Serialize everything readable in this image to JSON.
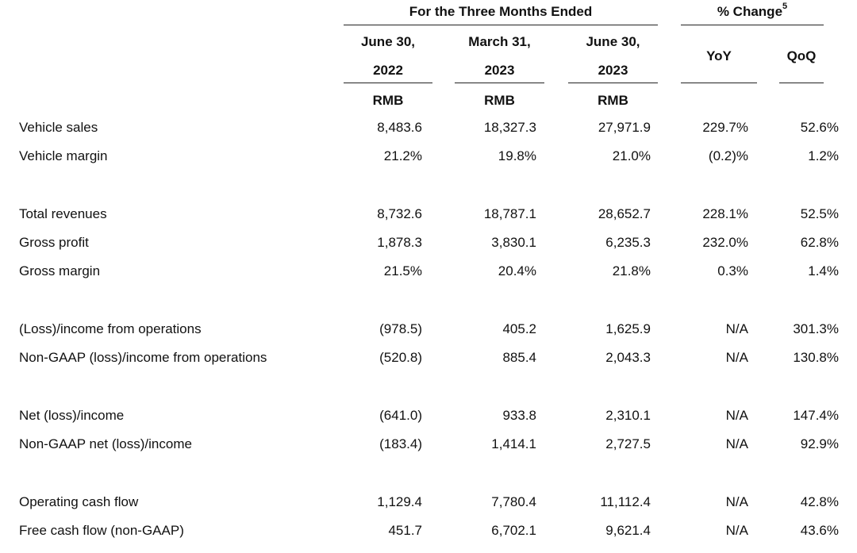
{
  "header": {
    "group_title": "For the Three Months Ended",
    "change_title": "% Change",
    "change_footnote": "5",
    "columns": [
      {
        "line1": "June 30,",
        "line2": "2022",
        "currency": "RMB"
      },
      {
        "line1": "March 31,",
        "line2": "2023",
        "currency": "RMB"
      },
      {
        "line1": "June 30,",
        "line2": "2023",
        "currency": "RMB"
      }
    ],
    "yoy": "YoY",
    "qoq": "QoQ"
  },
  "rows": [
    {
      "label": "Vehicle sales",
      "values": [
        "8,483.6",
        "18,327.3",
        "27,971.9",
        "229.7%",
        "52.6%"
      ]
    },
    {
      "label": "Vehicle margin",
      "values": [
        "21.2%",
        "19.8%",
        "21.0%",
        "(0.2)%",
        "1.2%"
      ]
    },
    {
      "label": "Total revenues",
      "values": [
        "8,732.6",
        "18,787.1",
        "28,652.7",
        "228.1%",
        "52.5%"
      ]
    },
    {
      "label": "Gross profit",
      "values": [
        "1,878.3",
        "3,830.1",
        "6,235.3",
        "232.0%",
        "62.8%"
      ]
    },
    {
      "label": "Gross margin",
      "values": [
        "21.5%",
        "20.4%",
        "21.8%",
        "0.3%",
        "1.4%"
      ]
    },
    {
      "label": "(Loss)/income from operations",
      "values": [
        "(978.5)",
        "405.2",
        "1,625.9",
        "N/A",
        "301.3%"
      ]
    },
    {
      "label": "Non-GAAP (loss)/income from operations",
      "values": [
        "(520.8)",
        "885.4",
        "2,043.3",
        "N/A",
        "130.8%"
      ]
    },
    {
      "label": "Net (loss)/income",
      "values": [
        "(641.0)",
        "933.8",
        "2,310.1",
        "N/A",
        "147.4%"
      ]
    },
    {
      "label": "Non-GAAP net (loss)/income",
      "values": [
        "(183.4)",
        "1,414.1",
        "2,727.5",
        "N/A",
        "92.9%"
      ]
    },
    {
      "label": "Operating cash flow",
      "values": [
        "1,129.4",
        "7,780.4",
        "11,112.4",
        "N/A",
        "42.8%"
      ]
    },
    {
      "label": "Free cash flow (non-GAAP)",
      "values": [
        "451.7",
        "6,702.1",
        "9,621.4",
        "N/A",
        "43.6%"
      ]
    }
  ]
}
